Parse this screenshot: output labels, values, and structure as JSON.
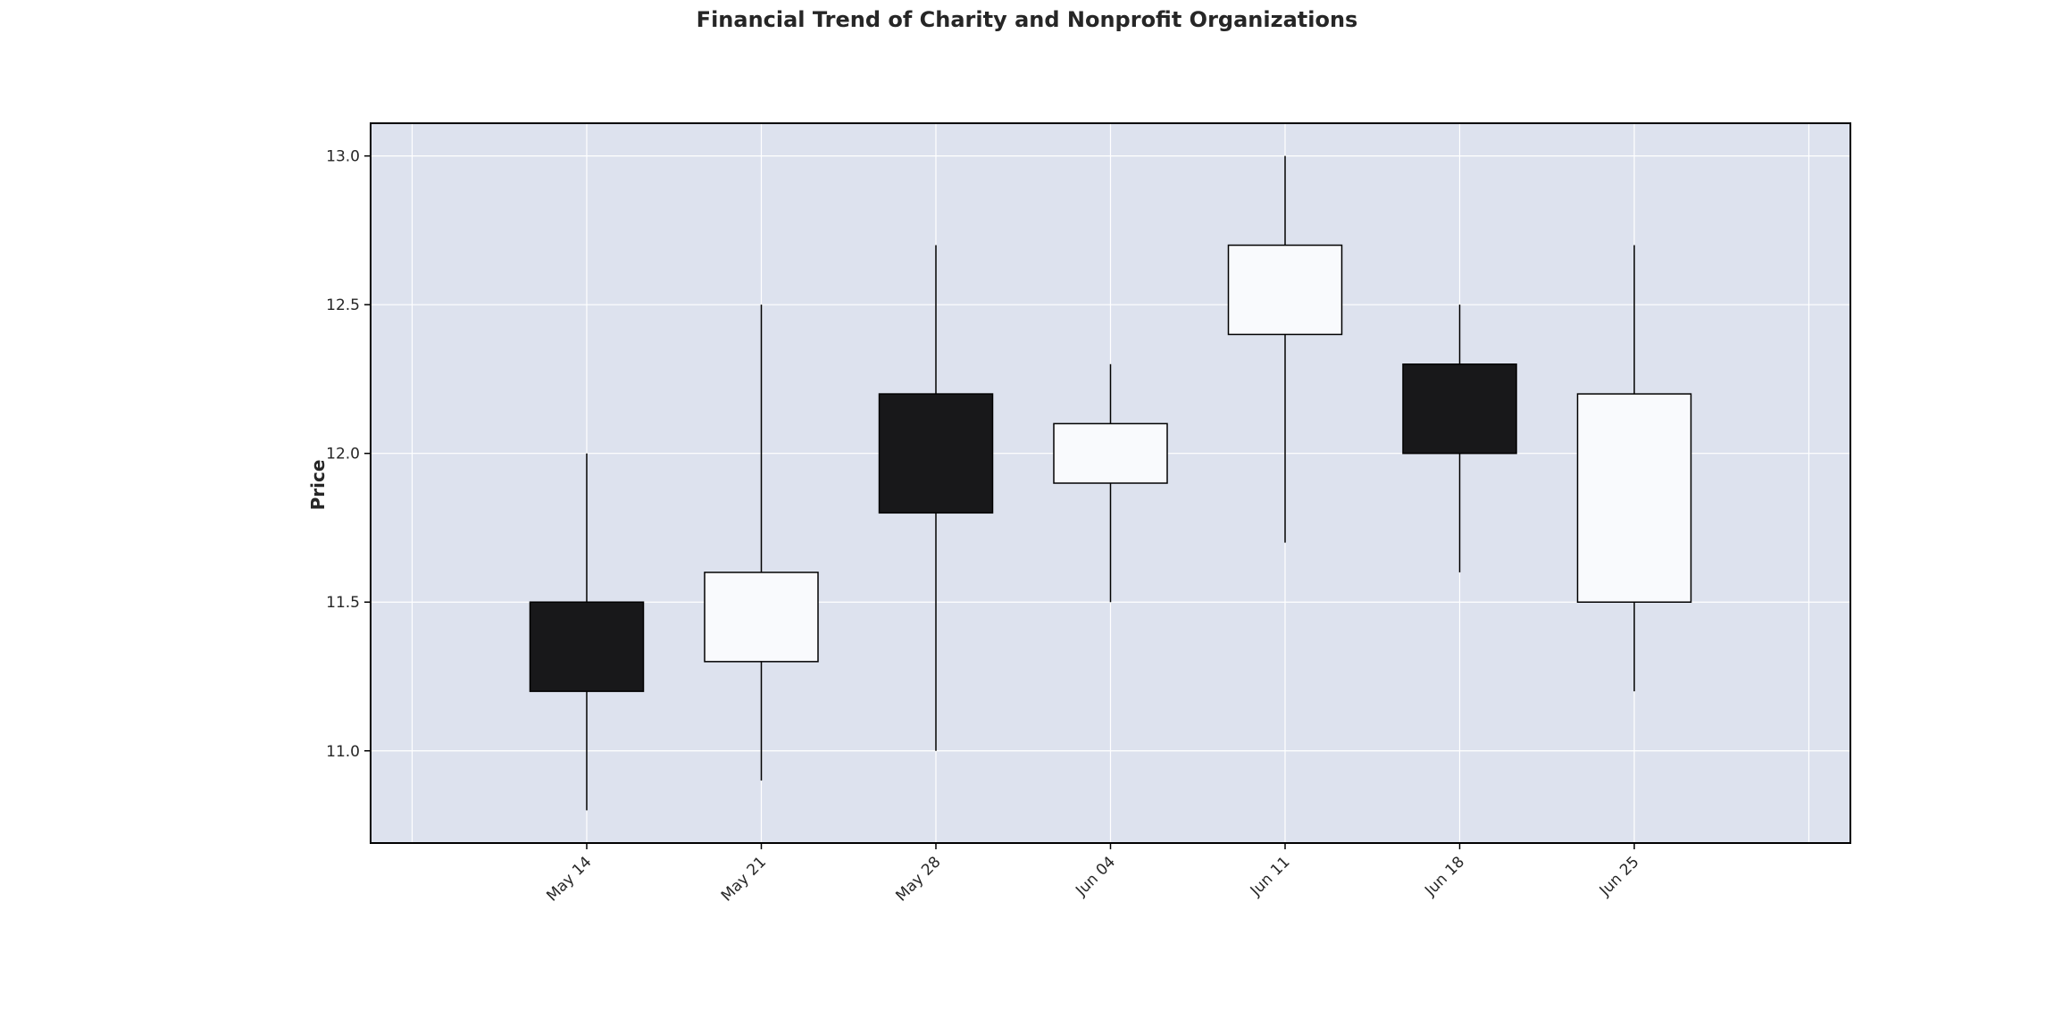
{
  "chart_data": {
    "type": "candlestick",
    "title": "Financial Trend of Charity and Nonprofit Organizations",
    "xlabel": "",
    "ylabel": "Price",
    "ylim": [
      10.69,
      13.11
    ],
    "yticks": [
      "11.0",
      "11.5",
      "12.0",
      "12.5",
      "13.0"
    ],
    "grid": true,
    "background": "#dde2ee",
    "colors": {
      "up": "#f9fafd",
      "down": "#18181a",
      "wick": "#000000",
      "border": "#000000"
    },
    "candles": [
      {
        "date": "May 14",
        "open": 11.5,
        "high": 12.0,
        "low": 10.8,
        "close": 11.2
      },
      {
        "date": "May 21",
        "open": 11.3,
        "high": 12.5,
        "low": 10.9,
        "close": 11.6
      },
      {
        "date": "May 28",
        "open": 12.2,
        "high": 12.7,
        "low": 11.0,
        "close": 11.8
      },
      {
        "date": "Jun 04",
        "open": 11.9,
        "high": 12.3,
        "low": 11.5,
        "close": 12.1
      },
      {
        "date": "Jun 11",
        "open": 12.4,
        "high": 13.0,
        "low": 11.7,
        "close": 12.7
      },
      {
        "date": "Jun 18",
        "open": 12.3,
        "high": 12.5,
        "low": 11.6,
        "close": 12.0
      },
      {
        "date": "Jun 25",
        "open": 11.5,
        "high": 12.7,
        "low": 11.2,
        "close": 12.2
      }
    ]
  }
}
